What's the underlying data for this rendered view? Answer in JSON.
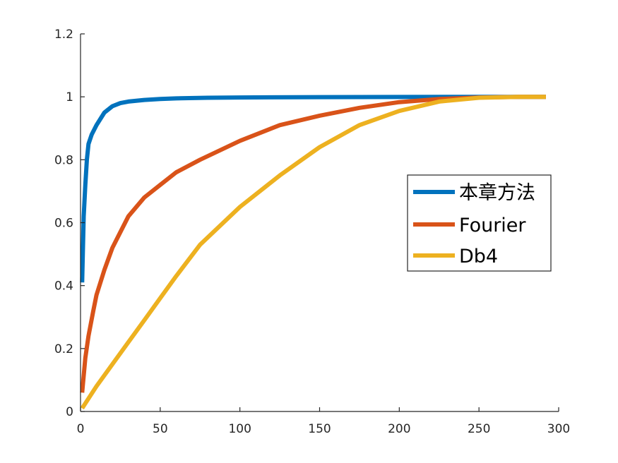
{
  "chart_data": {
    "type": "line",
    "title": "",
    "xlabel": "",
    "ylabel": "",
    "xlim": [
      0,
      300
    ],
    "ylim": [
      0,
      1.2
    ],
    "xticks": [
      0,
      50,
      100,
      150,
      200,
      250,
      300
    ],
    "yticks": [
      0,
      0.2,
      0.4,
      0.6,
      0.8,
      1,
      1.2
    ],
    "xtick_labels": [
      "0",
      "50",
      "100",
      "150",
      "200",
      "250",
      "300"
    ],
    "ytick_labels": [
      "0",
      "0.2",
      "0.4",
      "0.6",
      "0.8",
      "1",
      "1.2"
    ],
    "grid": false,
    "legend_position": "right",
    "series": [
      {
        "name": "本章方法",
        "color": "#0072BD",
        "x": [
          1,
          2,
          3,
          4,
          5,
          7,
          10,
          15,
          20,
          25,
          30,
          40,
          50,
          60,
          80,
          100,
          150,
          200,
          250,
          292
        ],
        "y": [
          0.41,
          0.62,
          0.72,
          0.8,
          0.85,
          0.88,
          0.91,
          0.95,
          0.97,
          0.98,
          0.985,
          0.99,
          0.993,
          0.995,
          0.997,
          0.998,
          0.999,
          0.9995,
          1.0,
          1.0
        ]
      },
      {
        "name": "Fourier",
        "color": "#D95319",
        "x": [
          1,
          3,
          5,
          8,
          10,
          15,
          20,
          25,
          30,
          40,
          50,
          60,
          75,
          100,
          125,
          150,
          175,
          200,
          225,
          250,
          275,
          292
        ],
        "y": [
          0.06,
          0.17,
          0.24,
          0.32,
          0.37,
          0.45,
          0.52,
          0.57,
          0.62,
          0.68,
          0.72,
          0.76,
          0.8,
          0.86,
          0.91,
          0.94,
          0.965,
          0.983,
          0.993,
          0.998,
          1.0,
          1.0
        ]
      },
      {
        "name": "Db4",
        "color": "#EDB120",
        "x": [
          1,
          10,
          20,
          30,
          40,
          50,
          60,
          75,
          100,
          125,
          150,
          175,
          200,
          225,
          250,
          275,
          292
        ],
        "y": [
          0.01,
          0.08,
          0.15,
          0.22,
          0.29,
          0.36,
          0.43,
          0.53,
          0.65,
          0.75,
          0.84,
          0.91,
          0.955,
          0.985,
          0.997,
          1.0,
          1.0
        ]
      }
    ]
  }
}
